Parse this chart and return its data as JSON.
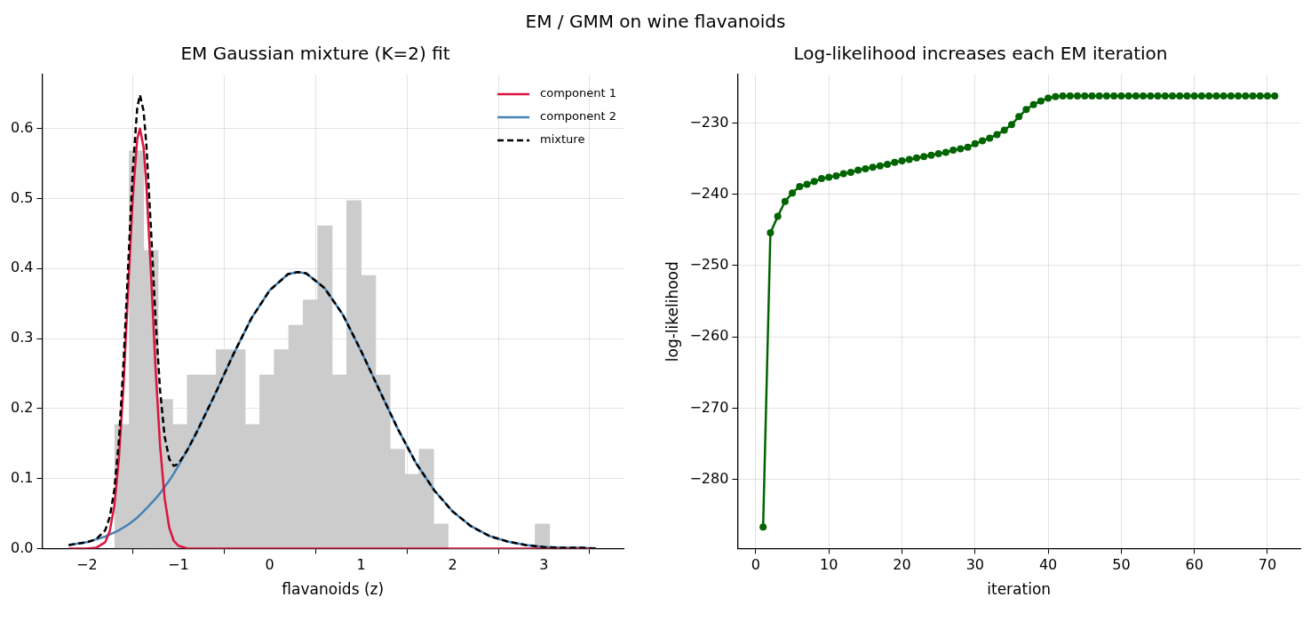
{
  "chart_data": [
    {
      "type": "other",
      "title": "EM / GMM on wine flavanoids"
    },
    {
      "type": "histogram",
      "title": "EM Gaussian mixture (K=2) fit",
      "xlabel": "flavanoids (z)",
      "bins": [
        -1.696,
        -1.537,
        -1.379,
        -1.22,
        -1.062,
        -0.903,
        -0.744,
        -0.586,
        -0.427,
        -0.269,
        -0.11,
        0.049,
        0.207,
        0.366,
        0.524,
        0.683,
        0.842,
        1.0,
        1.159,
        1.317,
        1.476,
        1.635,
        1.793,
        1.952,
        2.11,
        2.269,
        2.428,
        2.586,
        2.745,
        2.903,
        3.062
      ],
      "values": [
        0.177,
        0.568,
        0.426,
        0.213,
        0.177,
        0.248,
        0.248,
        0.284,
        0.284,
        0.177,
        0.248,
        0.284,
        0.319,
        0.355,
        0.461,
        0.248,
        0.497,
        0.39,
        0.248,
        0.142,
        0.106,
        0.142,
        0.035,
        0,
        0,
        0,
        0,
        0,
        0,
        0.035
      ],
      "color": "#cccccc",
      "series": [
        {
          "type": "line",
          "name": "component 1",
          "color": "#dc143c",
          "x": [
            -2.2,
            -2.0,
            -1.9,
            -1.8,
            -1.75,
            -1.7,
            -1.65,
            -1.6,
            -1.55,
            -1.5,
            -1.45,
            -1.42,
            -1.38,
            -1.35,
            -1.3,
            -1.25,
            -1.2,
            -1.15,
            -1.1,
            -1.05,
            -1.0,
            -0.9,
            -0.8,
            -0.6,
            -0.4,
            -0.2,
            0,
            0.2,
            0.31,
            0.4,
            0.6,
            0.8,
            1.0,
            1.2,
            1.4,
            1.6,
            1.8,
            2.0,
            2.2,
            2.4,
            2.6,
            2.8,
            3.0,
            3.2,
            3.4,
            3.57
          ],
          "values": [
            0,
            0,
            0.001,
            0.009,
            0.025,
            0.061,
            0.129,
            0.233,
            0.367,
            0.498,
            0.585,
            0.6,
            0.573,
            0.52,
            0.394,
            0.259,
            0.147,
            0.072,
            0.03,
            0.011,
            0.004,
            0,
            0,
            0,
            0,
            0,
            0,
            0,
            0,
            0,
            0,
            0,
            0,
            0,
            0,
            0,
            0,
            0,
            0,
            0,
            0,
            0,
            0,
            0,
            0,
            0
          ]
        },
        {
          "type": "line",
          "name": "component 2",
          "color": "#4682b4",
          "x": [
            -2.2,
            -2.0,
            -1.9,
            -1.8,
            -1.75,
            -1.7,
            -1.65,
            -1.6,
            -1.55,
            -1.5,
            -1.45,
            -1.42,
            -1.38,
            -1.35,
            -1.3,
            -1.25,
            -1.2,
            -1.15,
            -1.1,
            -1.05,
            -1.0,
            -0.9,
            -0.8,
            -0.6,
            -0.4,
            -0.2,
            0,
            0.2,
            0.31,
            0.4,
            0.6,
            0.8,
            1.0,
            1.2,
            1.4,
            1.6,
            1.8,
            2.0,
            2.2,
            2.4,
            2.6,
            2.8,
            3.0,
            3.2,
            3.4,
            3.57
          ],
          "values": [
            0.005,
            0.009,
            0.013,
            0.017,
            0.02,
            0.023,
            0.026,
            0.03,
            0.034,
            0.039,
            0.044,
            0.048,
            0.053,
            0.057,
            0.064,
            0.071,
            0.079,
            0.088,
            0.097,
            0.107,
            0.118,
            0.141,
            0.166,
            0.22,
            0.277,
            0.329,
            0.369,
            0.392,
            0.395,
            0.393,
            0.372,
            0.334,
            0.282,
            0.226,
            0.171,
            0.122,
            0.083,
            0.053,
            0.032,
            0.018,
            0.01,
            0.005,
            0.002,
            0.001,
            0.001,
            0
          ]
        },
        {
          "type": "line",
          "name": "mixture",
          "color": "#000000",
          "line_style": "dashed",
          "x": [
            -2.2,
            -2.0,
            -1.9,
            -1.8,
            -1.75,
            -1.7,
            -1.65,
            -1.6,
            -1.55,
            -1.5,
            -1.45,
            -1.42,
            -1.38,
            -1.35,
            -1.3,
            -1.25,
            -1.2,
            -1.15,
            -1.1,
            -1.05,
            -1.0,
            -0.9,
            -0.8,
            -0.6,
            -0.4,
            -0.2,
            0,
            0.2,
            0.31,
            0.4,
            0.6,
            0.8,
            1.0,
            1.2,
            1.4,
            1.6,
            1.8,
            2.0,
            2.2,
            2.4,
            2.6,
            2.8,
            3.0,
            3.2,
            3.4,
            3.57
          ],
          "values": [
            0.005,
            0.009,
            0.013,
            0.026,
            0.045,
            0.084,
            0.155,
            0.264,
            0.401,
            0.537,
            0.629,
            0.648,
            0.625,
            0.577,
            0.458,
            0.33,
            0.226,
            0.16,
            0.128,
            0.118,
            0.121,
            0.141,
            0.166,
            0.22,
            0.277,
            0.329,
            0.369,
            0.392,
            0.395,
            0.393,
            0.372,
            0.334,
            0.282,
            0.226,
            0.171,
            0.122,
            0.083,
            0.053,
            0.032,
            0.018,
            0.01,
            0.005,
            0.002,
            0.001,
            0.001,
            0
          ]
        }
      ],
      "xlim": [
        -2.49,
        3.87
      ],
      "ylim": [
        0,
        0.677
      ],
      "xticks": [
        {
          "value": -2,
          "label": "−2"
        },
        {
          "value": -1,
          "label": "−1"
        },
        0,
        1,
        2,
        3
      ],
      "yticks": [
        {
          "value": 0,
          "label": "0.0"
        },
        0.1,
        0.2,
        0.3,
        0.4,
        0.5,
        0.6
      ],
      "grid": true,
      "legend": "top right",
      "marker": "none"
    },
    {
      "type": "line",
      "title": "Log-likelihood increases each EM iteration",
      "xlabel": "iteration",
      "ylabel": "log-likelihood",
      "x": [
        1,
        2,
        3,
        4,
        5,
        6,
        7,
        8,
        9,
        10,
        11,
        12,
        13,
        14,
        15,
        16,
        17,
        18,
        19,
        20,
        21,
        22,
        23,
        24,
        25,
        26,
        27,
        28,
        29,
        30,
        31,
        32,
        33,
        34,
        35,
        36,
        37,
        38,
        39,
        40,
        41,
        42,
        43,
        44,
        45,
        46,
        47,
        48,
        49,
        50,
        51,
        52,
        53,
        54,
        55,
        56,
        57,
        58,
        59,
        60,
        61,
        62,
        63,
        64,
        65,
        66,
        67,
        68,
        69,
        70,
        71
      ],
      "series": [
        {
          "color": "#006400",
          "values": [
            -286.7,
            -245.4,
            -243.1,
            -241.0,
            -239.8,
            -238.9,
            -238.6,
            -238.2,
            -237.8,
            -237.6,
            -237.4,
            -237.1,
            -236.9,
            -236.6,
            -236.4,
            -236.2,
            -236.0,
            -235.8,
            -235.5,
            -235.3,
            -235.1,
            -234.9,
            -234.7,
            -234.5,
            -234.3,
            -234.1,
            -233.8,
            -233.6,
            -233.4,
            -232.9,
            -232.5,
            -232.1,
            -231.6,
            -231.0,
            -230.2,
            -229.1,
            -228.1,
            -227.4,
            -226.9,
            -226.5,
            -226.3,
            -226.2,
            -226.2,
            -226.2,
            -226.2,
            -226.2,
            -226.2,
            -226.2,
            -226.2,
            -226.2,
            -226.2,
            -226.2,
            -226.2,
            -226.2,
            -226.2,
            -226.2,
            -226.2,
            -226.2,
            -226.2,
            -226.2,
            -226.2,
            -226.2,
            -226.2,
            -226.2,
            -226.2,
            -226.2,
            -226.2,
            -226.2,
            -226.2,
            -226.2,
            -226.2
          ]
        }
      ],
      "xlim": [
        -2.5,
        74.5
      ],
      "ylim": [
        -289.7,
        -223.2
      ],
      "xticks": [
        0,
        10,
        20,
        30,
        40,
        50,
        60,
        70
      ],
      "yticks": [
        {
          "value": -280,
          "label": "−280"
        },
        {
          "value": -270,
          "label": "−270"
        },
        {
          "value": -260,
          "label": "−260"
        },
        {
          "value": -250,
          "label": "−250"
        },
        {
          "value": -240,
          "label": "−240"
        },
        {
          "value": -230,
          "label": "−230"
        }
      ],
      "grid": true,
      "marker": "circle"
    }
  ]
}
